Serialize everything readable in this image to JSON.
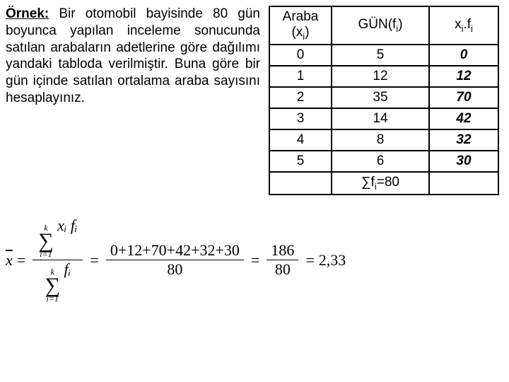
{
  "desc": {
    "title": "Örnek:",
    "text": " Bir otomobil bayisinde 80 gün boyunca yapılan inceleme sonucunda satılan arabaların adetlerine göre dağılımı yandaki tabloda verilmiştir. Buna göre bir gün içinde satılan ortalama araba sayısını hesaplayınız."
  },
  "table": {
    "headers": {
      "col1_a": "Araba",
      "col1_b": "(x",
      "col1_sub": "i",
      "col1_c": ")",
      "col2_a": "GÜN(f",
      "col2_sub": "i",
      "col2_b": ")",
      "col3_a": "x",
      "col3_sub1": "i",
      "col3_mid": ".f",
      "col3_sub2": "i"
    },
    "rows": [
      {
        "x": "0",
        "f": "5",
        "xf": "0"
      },
      {
        "x": "1",
        "f": "12",
        "xf": "12"
      },
      {
        "x": "2",
        "f": "35",
        "xf": "70"
      },
      {
        "x": "3",
        "f": "14",
        "xf": "42"
      },
      {
        "x": "4",
        "f": "8",
        "xf": "32"
      },
      {
        "x": "5",
        "f": "6",
        "xf": "30"
      }
    ],
    "sum_a": "∑f",
    "sum_sub": "i",
    "sum_b": "=80"
  },
  "formula": {
    "xbar": "x",
    "eq": "=",
    "upper_k": "k",
    "lower_i": "i=1",
    "term_num": "xᵢ fᵢ",
    "term_den": "fᵢ",
    "expand_num": "0+12+70+42+32+30",
    "expand_den": "80",
    "mid_num": "186",
    "mid_den": "80",
    "result": "2,33"
  },
  "style": {
    "text_color": "#000000",
    "bg_color": "#ffffff",
    "border_color": "#000000",
    "body_fontsize": 19,
    "formula_fontsize": 22
  }
}
